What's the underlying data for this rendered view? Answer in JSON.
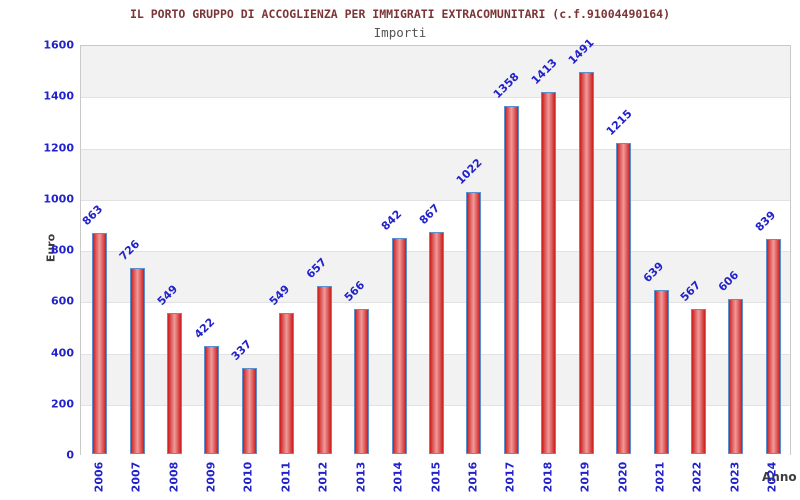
{
  "chart_data": {
    "type": "bar",
    "title": "IL PORTO GRUPPO DI ACCOGLIENZA PER IMMIGRATI EXTRACOMUNITARI (c.f.91004490164)",
    "subtitle": "Importi",
    "xlabel": "Anno",
    "ylabel": "Euro",
    "categories": [
      "2006",
      "2007",
      "2008",
      "2009",
      "2010",
      "2011",
      "2012",
      "2013",
      "2014",
      "2015",
      "2016",
      "2017",
      "2018",
      "2019",
      "2020",
      "2021",
      "2022",
      "2023",
      "2024"
    ],
    "values": [
      863,
      726,
      549,
      422,
      337,
      549,
      657,
      566,
      842,
      867,
      1022,
      1358,
      1413,
      1491,
      1215,
      639,
      567,
      606,
      839
    ],
    "ylim": [
      0,
      1600
    ],
    "ytick_step": 200,
    "grid": "alternating-horizontal-bands",
    "legend_position": "none",
    "colors": {
      "title": "#7b3535",
      "subtitle": "#555555",
      "tick_label": "#2222cc",
      "value_label": "#2222cc",
      "axis_label": "#3d3d3d",
      "bar_edge": "#cc1d1d",
      "bar_mid": "#f09b9b",
      "bar_border": "#5a8fd0",
      "band_gray": "#f2f2f2",
      "band_white": "#ffffff",
      "grid_line": "#e2e2e2",
      "plot_border": "#c9c9c9",
      "background": "#ffffff"
    }
  }
}
